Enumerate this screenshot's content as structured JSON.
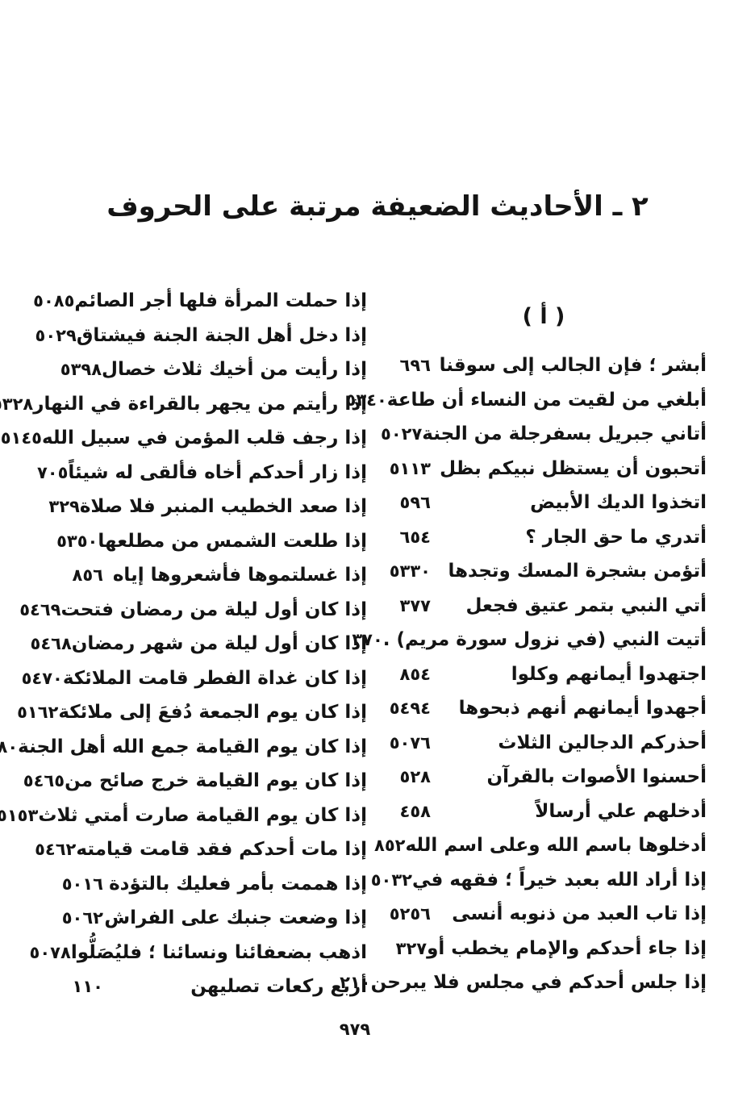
{
  "page": {
    "title": "٢ ـ الأحاديث الضعيفة مرتبة على الحروف",
    "section_letter": "( أ )",
    "page_number": "٩٧٩"
  },
  "columns": {
    "right": {
      "entries": [
        {
          "text": "أبشر ؛ فإن الجالب إلى سوقنا",
          "page": "٦٩٦"
        },
        {
          "text": "أبلغي من لقيت من النساء أن طاعة",
          "page": "٥٣٤٠"
        },
        {
          "text": "أتاني جبريل بسفرجلة من الجنة",
          "page": "٥٠٢٧"
        },
        {
          "text": "أتحبون أن يستظل نبيكم بظل",
          "page": "٥١١٣"
        },
        {
          "text": "اتخذوا الديك الأبيض",
          "page": "٥٩٦"
        },
        {
          "text": "أتدري ما حق الجار ؟",
          "page": "٦٥٤"
        },
        {
          "text": "أتؤمن بشجرة المسك وتجدها",
          "page": "٥٣٣٠"
        },
        {
          "text": "أتي النبي بتمر عتيق فجعل",
          "page": "٣٧٧"
        },
        {
          "text": "أتيت النبي (في نزول سورة مريم) .",
          "page": "٣٧٠"
        },
        {
          "text": "اجتهدوا أيمانهم وكلوا",
          "page": "٨٥٤"
        },
        {
          "text": "أجهدوا أيمانهم أنهم ذبحوها",
          "page": "٥٤٩٤"
        },
        {
          "text": "أحذركم الدجالين الثلاث",
          "page": "٥٠٧٦"
        },
        {
          "text": "أحسنوا الأصوات بالقرآن",
          "page": "٥٢٨"
        },
        {
          "text": "أدخلهم علي أرسالاً",
          "page": "٤٥٨"
        },
        {
          "text": "أدخلوها باسم الله وعلى اسم الله",
          "page": "٨٥٢"
        },
        {
          "text": "إذا أراد الله بعبد خيراً ؛ فقهه في",
          "page": "٥٠٣٢"
        },
        {
          "text": "إذا تاب العبد من ذنوبه أنسى",
          "page": "٥٢٥٦"
        },
        {
          "text": "إذا جاء أحدكم والإمام يخطب أو",
          "page": "٣٢٧"
        },
        {
          "text": "إذا جلس أحدكم في مجلس فلا يبرحن",
          "page": "٢١٠"
        }
      ]
    },
    "left": {
      "entries": [
        {
          "text": "إذا حملت المرأة فلها أجر الصائم",
          "page": "٥٠٨٥"
        },
        {
          "text": "إذا دخل أهل الجنة الجنة فيشتاق",
          "page": "٥٠٢٩"
        },
        {
          "text": "إذا رأيت من أخيك ثلاث خصال",
          "page": "٥٣٩٨"
        },
        {
          "text": "إذا رأيتم من يجهر بالقراءة في النهار",
          "page": "٥٣٢٨"
        },
        {
          "text": "إذا رجف قلب المؤمن في سبيل الله",
          "page": "٥١٤٥"
        },
        {
          "text": "إذا زار أحدكم أخاه فألقى له شيئاً",
          "page": "٧٠٥"
        },
        {
          "text": "إذا صعد الخطيب المنبر فلا صلاة",
          "page": "٣٢٩"
        },
        {
          "text": "إذا طلعت الشمس من مطلعها",
          "page": "٥٣٥٠"
        },
        {
          "text": "إذا غسلتموها فأشعروها إياه",
          "page": "٨٥٦"
        },
        {
          "text": "إذا كان أول ليلة من رمضان فتحت",
          "page": "٥٤٦٩"
        },
        {
          "text": "إذا كان أول ليلة من شهر رمضان",
          "page": "٥٤٦٨"
        },
        {
          "text": "إذا كان غداة الفطر قامت الملائكة",
          "page": "٥٤٧٠"
        },
        {
          "text": "إذا كان يوم الجمعة دُفعَ إلى ملائكة",
          "page": "٥١٦٢"
        },
        {
          "text": "إذا كان يوم القيامة جمع الله أهل الجنة",
          "page": "٥٢٨٠"
        },
        {
          "text": "إذا كان يوم القيامة خرج صائح من",
          "page": "٥٤٦٥"
        },
        {
          "text": "إذا كان يوم القيامة صارت أمتي ثلاث",
          "page": "٥١٥٣"
        },
        {
          "text": "إذا مات أحدكم فقد قامت قيامته",
          "page": "٥٤٦٢"
        },
        {
          "text": "إذا هممت بأمر فعليك بالتؤدة",
          "page": "٥٠١٦"
        },
        {
          "text": "إذا وضعت جنبك على الفراش",
          "page": "٥٠٦٢"
        },
        {
          "text": "اذهب بضعفائنا ونسائنا ؛ فليُصَلُّوا",
          "page": "٥٠٧٨"
        },
        {
          "text": "أربع ركعات تصليهن",
          "page": "١١٠"
        }
      ]
    }
  }
}
